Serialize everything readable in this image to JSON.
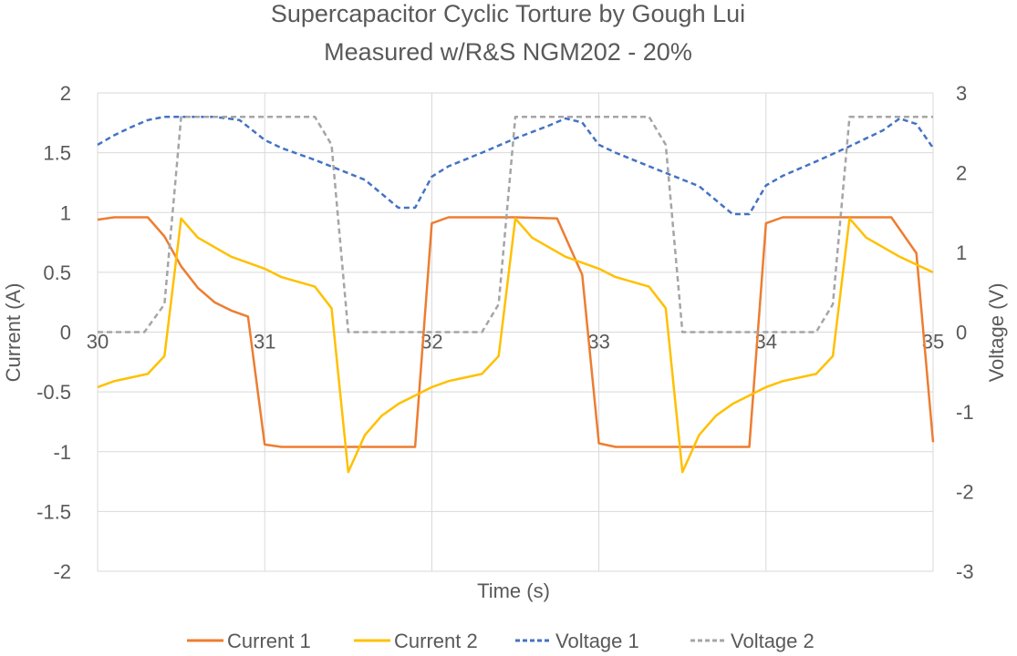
{
  "chart_data": {
    "type": "line",
    "title": "Supercapacitor Cyclic Torture by Gough Lui",
    "subtitle": "Measured w/R&S NGM202 - 20%",
    "xlabel": "Time (s)",
    "ylabel": "Current (A)",
    "y2label": "Voltage (V)",
    "xlim": [
      30,
      35
    ],
    "ylim": [
      -2,
      2
    ],
    "y2lim": [
      -3,
      3
    ],
    "x_ticks": [
      "30",
      "31",
      "32",
      "33",
      "34",
      "35"
    ],
    "y_ticks": [
      "2",
      "1.5",
      "1",
      "0.5",
      "0",
      "-0.5",
      "-1",
      "-1.5",
      "-2"
    ],
    "y2_ticks": [
      "3",
      "2",
      "1",
      "0",
      "-1",
      "-2",
      "-3"
    ],
    "grid": true,
    "legend_position": "bottom",
    "series": [
      {
        "name": "Current 1",
        "axis": "left",
        "color": "#ED7D31",
        "dash": "solid",
        "x": [
          30.0,
          30.1,
          30.3,
          30.4,
          30.5,
          30.6,
          30.7,
          30.8,
          30.9,
          31.0,
          31.1,
          31.5,
          31.9,
          32.0,
          32.1,
          32.5,
          32.75,
          32.9,
          33.0,
          33.1,
          33.5,
          33.9,
          34.0,
          34.1,
          34.5,
          34.75,
          34.9,
          35.0
        ],
        "values": [
          0.94,
          0.96,
          0.96,
          0.8,
          0.55,
          0.37,
          0.25,
          0.18,
          0.13,
          -0.94,
          -0.96,
          -0.96,
          -0.96,
          0.91,
          0.96,
          0.96,
          0.95,
          0.48,
          -0.93,
          -0.96,
          -0.96,
          -0.96,
          0.91,
          0.96,
          0.96,
          0.96,
          0.66,
          -0.92
        ]
      },
      {
        "name": "Current 2",
        "axis": "left",
        "color": "#FFC000",
        "dash": "solid",
        "x": [
          30.0,
          30.1,
          30.3,
          30.4,
          30.5,
          30.6,
          30.8,
          31.0,
          31.1,
          31.3,
          31.4,
          31.5,
          31.6,
          31.7,
          31.8,
          31.9,
          32.0,
          32.1,
          32.3,
          32.4,
          32.5,
          32.6,
          32.8,
          33.0,
          33.1,
          33.3,
          33.4,
          33.5,
          33.6,
          33.7,
          33.8,
          33.9,
          34.0,
          34.1,
          34.3,
          34.4,
          34.5,
          34.6,
          34.8,
          35.0
        ],
        "values": [
          -0.46,
          -0.41,
          -0.35,
          -0.2,
          0.95,
          0.79,
          0.63,
          0.53,
          0.46,
          0.38,
          0.2,
          -1.17,
          -0.86,
          -0.7,
          -0.6,
          -0.53,
          -0.46,
          -0.41,
          -0.35,
          -0.2,
          0.95,
          0.79,
          0.63,
          0.53,
          0.46,
          0.38,
          0.2,
          -1.17,
          -0.86,
          -0.7,
          -0.6,
          -0.53,
          -0.46,
          -0.41,
          -0.35,
          -0.2,
          0.95,
          0.79,
          0.63,
          0.5
        ]
      },
      {
        "name": "Voltage 1",
        "axis": "right",
        "color": "#4472C4",
        "dash": "dashed",
        "x": [
          30.0,
          30.1,
          30.2,
          30.3,
          30.4,
          30.5,
          30.7,
          30.85,
          31.0,
          31.1,
          31.3,
          31.6,
          31.8,
          31.9,
          32.0,
          32.1,
          32.3,
          32.5,
          32.7,
          32.8,
          32.9,
          33.0,
          33.1,
          33.3,
          33.6,
          33.8,
          33.9,
          34.0,
          34.1,
          34.3,
          34.5,
          34.7,
          34.8,
          34.9,
          35.0
        ],
        "values": [
          2.35,
          2.47,
          2.57,
          2.66,
          2.7,
          2.7,
          2.7,
          2.66,
          2.41,
          2.31,
          2.16,
          1.91,
          1.56,
          1.56,
          1.95,
          2.08,
          2.25,
          2.43,
          2.59,
          2.68,
          2.63,
          2.35,
          2.25,
          2.08,
          1.83,
          1.48,
          1.48,
          1.84,
          1.96,
          2.14,
          2.33,
          2.53,
          2.68,
          2.61,
          2.31
        ]
      },
      {
        "name": "Voltage 2",
        "axis": "right",
        "color": "#A5A5A5",
        "dash": "dashed",
        "x": [
          30.0,
          30.28,
          30.4,
          30.5,
          31.0,
          31.3,
          31.4,
          31.5,
          32.0,
          32.3,
          32.4,
          32.5,
          33.0,
          33.3,
          33.4,
          33.5,
          34.0,
          34.3,
          34.4,
          34.5,
          35.0
        ],
        "values": [
          0.0,
          0.0,
          0.35,
          2.7,
          2.7,
          2.7,
          2.35,
          0.0,
          0.0,
          0.0,
          0.35,
          2.7,
          2.7,
          2.7,
          2.35,
          0.0,
          0.0,
          0.0,
          0.35,
          2.7,
          2.7
        ]
      }
    ]
  }
}
